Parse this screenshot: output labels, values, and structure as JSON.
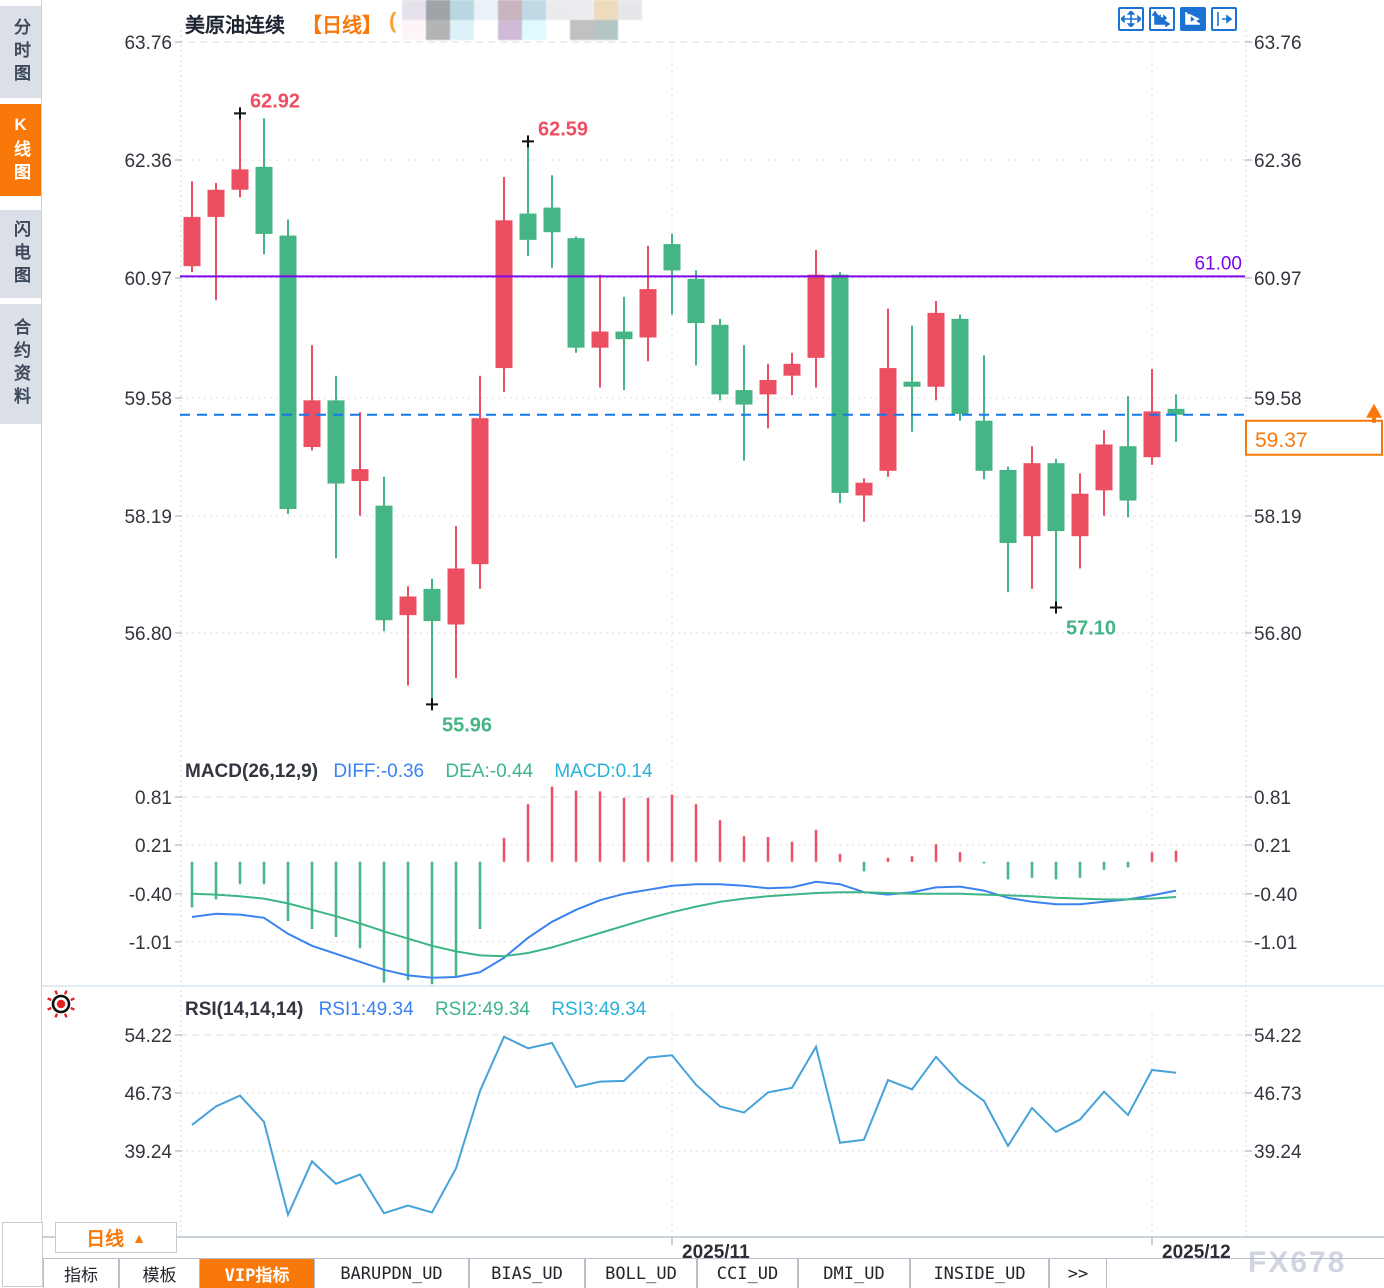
{
  "app": {
    "title": "美原油连续",
    "period_tag": "【日线】",
    "censor_paren": "(",
    "watermark": "FX678",
    "censor_mosaic_colors": [
      "#e6e2ec",
      "#a0a4a9",
      "#bad6e0",
      "#e9f2f6",
      "#c9b5bd",
      "#c1d9e4",
      "#ebebee",
      "#ededf1",
      "#eedabd",
      "#e5e7eb",
      "#fdf5fa",
      "#b4b4b7",
      "#def1f8",
      "#ffffff",
      "#d0bad8",
      "#defaff",
      "#ffffff",
      "#c1c1c1",
      "#b4c5c5",
      "#ffffff"
    ]
  },
  "sidebar": {
    "items": [
      {
        "label": "分时图",
        "active": false
      },
      {
        "label": "K线图",
        "active": true
      },
      {
        "label": "闪电图",
        "active": false
      },
      {
        "label": "合约资料",
        "active": false
      }
    ]
  },
  "toolbar": {
    "icons": [
      {
        "name": "pan-move-icon",
        "active": false
      },
      {
        "name": "axis-zoom-icon",
        "active": false
      },
      {
        "name": "auto-follow-icon",
        "active": true
      },
      {
        "name": "collapse-right-icon",
        "active": false
      }
    ]
  },
  "period_button": {
    "label": "日线",
    "arrow": "▲"
  },
  "tabs": {
    "items": [
      "指标",
      "模板",
      "VIP指标",
      "BARUPDN_UD",
      "BIAS_UD",
      "BOLL_UD",
      "CCI_UD",
      "DMI_UD",
      "INSIDE_UD",
      ">>"
    ],
    "active": "VIP指标"
  },
  "colors": {
    "up": "#ec4f62",
    "down": "#45b586",
    "purple_line": "#7e06ea",
    "current_line": "#1478e8",
    "accent_orange": "#f8790a",
    "diff_blue": "#3b82f0",
    "dea_green": "#3cb686",
    "macd_cyan": "#29b2d8",
    "rsi_line": "#46a2da",
    "axis_text": "#33343e",
    "date_text": "#2c2d35"
  },
  "chart_data": {
    "type": "candlestick",
    "title": "美原油连续【日线】",
    "x_ticks": [
      {
        "label": "2025/11",
        "candle_index": 20
      },
      {
        "label": "2025/12",
        "candle_index": 40
      }
    ],
    "price_panel": {
      "y_ticks": [
        "63.76",
        "62.36",
        "60.97",
        "59.58",
        "58.19",
        "56.80"
      ],
      "ylim": [
        56.0,
        63.9
      ],
      "hlines": [
        {
          "value": 61.0,
          "label": "61.00",
          "style": "solid",
          "color_key": "purple_line"
        },
        {
          "value": 59.37,
          "label": "59.37",
          "style": "dashed",
          "color_key": "current_line",
          "badge": true
        }
      ],
      "annotations": [
        {
          "index": 2,
          "pos": "high",
          "label": "62.92"
        },
        {
          "index": 14,
          "pos": "high",
          "label": "62.59"
        },
        {
          "index": 10,
          "pos": "low",
          "label": "55.96"
        },
        {
          "index": 36,
          "pos": "low",
          "label": "57.10"
        }
      ],
      "candles_ohlc": [
        [
          61.12,
          62.12,
          61.05,
          61.7
        ],
        [
          61.7,
          62.1,
          60.72,
          62.02
        ],
        [
          62.02,
          62.92,
          61.93,
          62.26
        ],
        [
          62.29,
          62.86,
          61.26,
          61.5
        ],
        [
          61.48,
          61.67,
          58.2,
          58.26
        ],
        [
          58.99,
          60.19,
          58.95,
          59.54
        ],
        [
          59.54,
          59.83,
          57.68,
          58.56
        ],
        [
          58.59,
          59.4,
          58.18,
          58.73
        ],
        [
          58.3,
          58.64,
          56.82,
          56.95
        ],
        [
          57.01,
          57.35,
          56.18,
          57.23
        ],
        [
          57.32,
          57.44,
          55.96,
          56.94
        ],
        [
          56.9,
          58.06,
          56.27,
          57.56
        ],
        [
          57.61,
          59.83,
          57.32,
          59.33
        ],
        [
          59.92,
          62.17,
          59.64,
          61.66
        ],
        [
          61.74,
          62.59,
          61.24,
          61.43
        ],
        [
          61.81,
          62.19,
          61.1,
          61.52
        ],
        [
          61.45,
          61.47,
          60.1,
          60.16
        ],
        [
          60.16,
          61.02,
          59.69,
          60.35
        ],
        [
          60.35,
          60.76,
          59.66,
          60.26
        ],
        [
          60.28,
          61.36,
          60.0,
          60.85
        ],
        [
          61.38,
          61.5,
          60.55,
          61.07
        ],
        [
          60.97,
          61.07,
          59.95,
          60.45
        ],
        [
          60.43,
          60.5,
          59.54,
          59.61
        ],
        [
          59.66,
          60.19,
          58.83,
          59.49
        ],
        [
          59.61,
          59.97,
          59.21,
          59.78
        ],
        [
          59.83,
          60.1,
          59.6,
          59.97
        ],
        [
          60.04,
          61.31,
          59.69,
          61.02
        ],
        [
          61.02,
          61.05,
          58.33,
          58.45
        ],
        [
          58.42,
          58.62,
          58.11,
          58.57
        ],
        [
          58.71,
          60.62,
          58.64,
          59.92
        ],
        [
          59.76,
          60.42,
          59.17,
          59.7
        ],
        [
          59.7,
          60.71,
          59.54,
          60.57
        ],
        [
          60.5,
          60.55,
          59.3,
          59.38
        ],
        [
          59.3,
          60.07,
          58.61,
          58.71
        ],
        [
          58.72,
          58.76,
          57.28,
          57.86
        ],
        [
          57.94,
          59.0,
          57.32,
          58.8
        ],
        [
          58.8,
          58.85,
          57.1,
          58.0
        ],
        [
          57.94,
          58.68,
          57.56,
          58.44
        ],
        [
          58.48,
          59.19,
          58.18,
          59.02
        ],
        [
          59.0,
          59.59,
          58.16,
          58.36
        ],
        [
          58.87,
          59.91,
          58.78,
          59.41
        ],
        [
          59.44,
          59.61,
          59.05,
          59.37
        ]
      ]
    },
    "macd_panel": {
      "title": "MACD(26,12,9)",
      "legend": [
        "DIFF:-0.36",
        "DEA:-0.44",
        "MACD:0.14"
      ],
      "y_ticks": [
        "0.81",
        "0.21",
        "-0.40",
        "-1.01"
      ],
      "hist": [
        -0.57,
        -0.47,
        -0.28,
        -0.28,
        -0.74,
        -0.84,
        -0.94,
        -1.08,
        -1.51,
        -1.48,
        -1.53,
        -1.44,
        -0.84,
        0.3,
        0.72,
        0.94,
        0.89,
        0.88,
        0.8,
        0.8,
        0.84,
        0.72,
        0.52,
        0.32,
        0.31,
        0.25,
        0.4,
        0.1,
        -0.12,
        0.05,
        0.07,
        0.22,
        0.12,
        -0.02,
        -0.22,
        -0.2,
        -0.22,
        -0.2,
        -0.1,
        -0.07,
        0.12,
        0.14
      ],
      "diff": [
        -0.69,
        -0.65,
        -0.66,
        -0.7,
        -0.9,
        -1.05,
        -1.15,
        -1.25,
        -1.35,
        -1.42,
        -1.45,
        -1.44,
        -1.38,
        -1.2,
        -0.95,
        -0.75,
        -0.6,
        -0.48,
        -0.4,
        -0.35,
        -0.3,
        -0.28,
        -0.28,
        -0.3,
        -0.33,
        -0.32,
        -0.25,
        -0.28,
        -0.38,
        -0.41,
        -0.38,
        -0.32,
        -0.31,
        -0.36,
        -0.45,
        -0.5,
        -0.53,
        -0.53,
        -0.5,
        -0.47,
        -0.42,
        -0.36
      ],
      "dea": [
        -0.4,
        -0.41,
        -0.43,
        -0.46,
        -0.52,
        -0.6,
        -0.68,
        -0.77,
        -0.87,
        -0.96,
        -1.05,
        -1.12,
        -1.17,
        -1.18,
        -1.14,
        -1.07,
        -0.98,
        -0.89,
        -0.8,
        -0.71,
        -0.63,
        -0.56,
        -0.5,
        -0.46,
        -0.43,
        -0.41,
        -0.39,
        -0.38,
        -0.38,
        -0.39,
        -0.4,
        -0.4,
        -0.4,
        -0.41,
        -0.42,
        -0.43,
        -0.45,
        -0.46,
        -0.47,
        -0.47,
        -0.46,
        -0.44
      ]
    },
    "rsi_panel": {
      "title": "RSI(14,14,14)",
      "legend": [
        "RSI1:49.34",
        "RSI2:49.34",
        "RSI3:49.34"
      ],
      "y_ticks": [
        "54.22",
        "46.73",
        "39.24"
      ],
      "values": [
        42.6,
        45.0,
        46.4,
        43.0,
        31.0,
        37.9,
        35.0,
        36.2,
        31.2,
        32.2,
        31.3,
        37.0,
        47.0,
        54.0,
        52.5,
        53.2,
        47.5,
        48.2,
        48.3,
        51.3,
        51.6,
        47.8,
        45.0,
        44.2,
        46.8,
        47.4,
        52.7,
        40.3,
        40.7,
        48.4,
        47.2,
        51.4,
        48.0,
        45.7,
        39.9,
        44.8,
        41.7,
        43.3,
        46.9,
        43.9,
        49.7,
        49.34
      ]
    }
  }
}
